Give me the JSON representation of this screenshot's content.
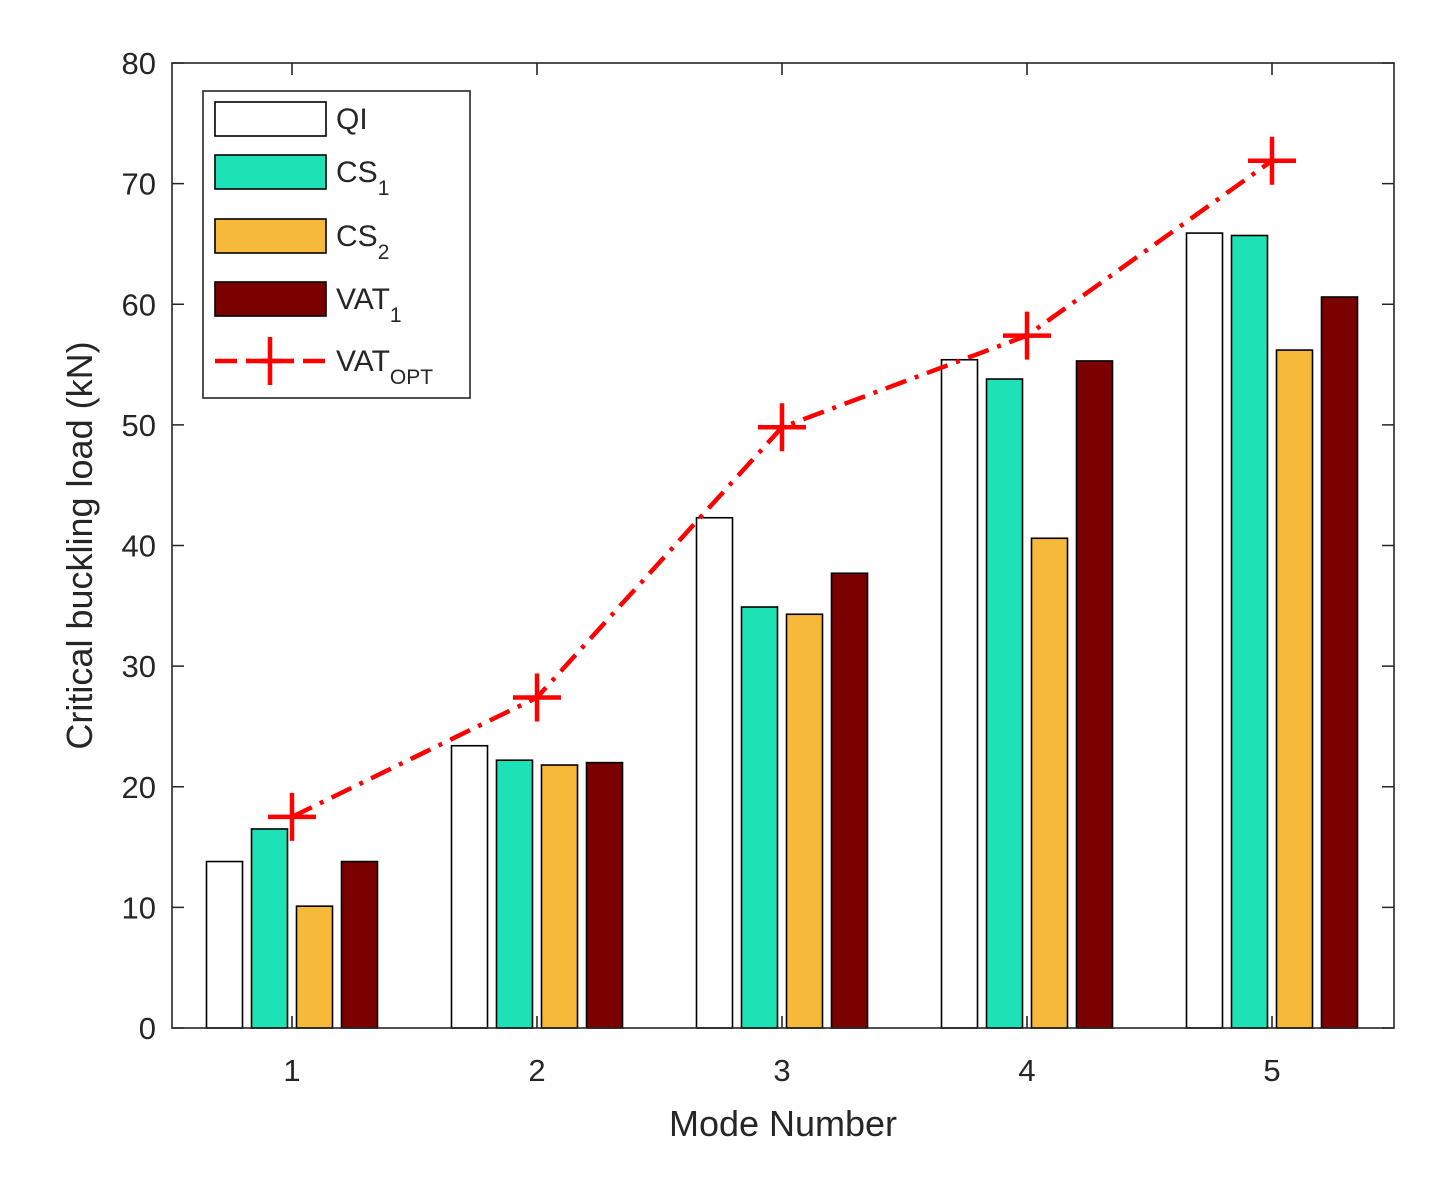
{
  "chart_data": {
    "type": "bar",
    "title": "",
    "xlabel": "Mode Number",
    "ylabel": "Critical buckling load (kN)",
    "categories": [
      "1",
      "2",
      "3",
      "4",
      "5"
    ],
    "ylim": [
      0,
      80
    ],
    "yticks": [
      "0",
      "10",
      "20",
      "30",
      "40",
      "50",
      "60",
      "70",
      "80"
    ],
    "grid": false,
    "legend_position": "top-left",
    "series": [
      {
        "name": "QI",
        "base": "QI",
        "sub": "",
        "color": "#ffffff",
        "kind": "bar",
        "values": [
          13.8,
          23.4,
          42.3,
          55.4,
          65.9
        ]
      },
      {
        "name": "CS1",
        "base": "CS",
        "sub": "1",
        "color": "#1de2b5",
        "kind": "bar",
        "values": [
          16.5,
          22.2,
          34.9,
          53.8,
          65.7
        ]
      },
      {
        "name": "CS2",
        "base": "CS",
        "sub": "2",
        "color": "#f7b93a",
        "kind": "bar",
        "values": [
          10.1,
          21.8,
          34.3,
          40.6,
          56.2
        ]
      },
      {
        "name": "VAT1",
        "base": "VAT",
        "sub": "1",
        "color": "#7b0000",
        "kind": "bar",
        "values": [
          13.8,
          22.0,
          37.7,
          55.3,
          60.6
        ]
      },
      {
        "name": "VATOPT",
        "base": "VAT",
        "sub": "OPT",
        "color": "#ff0000",
        "kind": "line",
        "values": [
          17.5,
          27.4,
          49.8,
          57.4,
          71.9
        ]
      }
    ]
  }
}
